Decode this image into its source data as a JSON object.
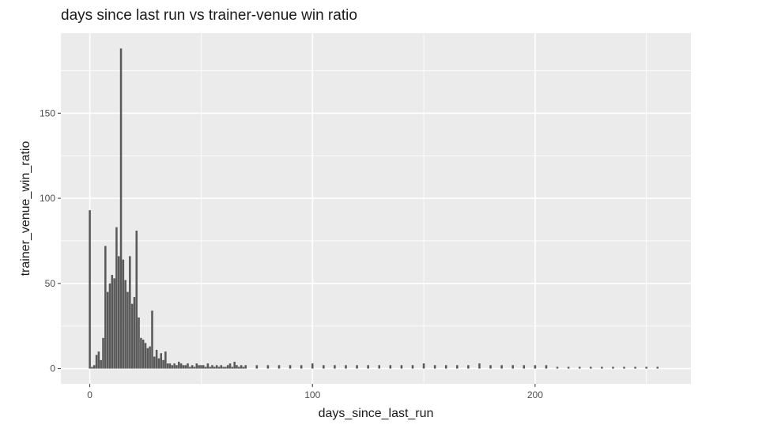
{
  "chart_data": {
    "type": "bar",
    "title": "days since last run vs trainer-venue win ratio",
    "xlabel": "days_since_last_run",
    "ylabel": "trainer_venue_win_ratio",
    "xlim": [
      -13,
      270
    ],
    "ylim": [
      -9,
      197
    ],
    "x_ticks": [
      0,
      100,
      200
    ],
    "y_ticks": [
      0,
      50,
      100,
      150
    ],
    "grid": true,
    "panel_color": "#ebebeb",
    "grid_color": "#ffffff",
    "bar_color": "#595959",
    "x": [
      0,
      1,
      2,
      3,
      4,
      5,
      6,
      7,
      8,
      9,
      10,
      11,
      12,
      13,
      14,
      15,
      16,
      17,
      18,
      19,
      20,
      21,
      22,
      23,
      24,
      25,
      26,
      27,
      28,
      29,
      30,
      31,
      32,
      33,
      34,
      35,
      36,
      37,
      38,
      39,
      40,
      41,
      42,
      43,
      44,
      45,
      46,
      47,
      48,
      49,
      50,
      51,
      52,
      53,
      54,
      55,
      56,
      57,
      58,
      59,
      60,
      61,
      62,
      63,
      64,
      65,
      66,
      67,
      68,
      69,
      70,
      75,
      80,
      85,
      90,
      95,
      100,
      105,
      110,
      115,
      120,
      125,
      130,
      135,
      140,
      145,
      150,
      155,
      160,
      165,
      170,
      175,
      180,
      185,
      190,
      195,
      200,
      205,
      210,
      215,
      220,
      225,
      230,
      235,
      240,
      245,
      250,
      255
    ],
    "values": [
      93,
      1,
      2,
      8,
      10,
      5,
      18,
      72,
      45,
      50,
      55,
      53,
      83,
      66,
      188,
      64,
      52,
      45,
      66,
      38,
      42,
      81,
      30,
      18,
      17,
      15,
      12,
      13,
      34,
      7,
      11,
      6,
      9,
      5,
      10,
      3,
      3,
      2,
      3,
      2,
      4,
      3,
      2,
      2,
      3,
      1,
      2,
      1,
      3,
      2,
      2,
      2,
      1,
      3,
      1,
      2,
      1,
      2,
      1,
      2,
      1,
      1,
      2,
      3,
      1,
      4,
      2,
      1,
      2,
      1,
      2,
      2,
      2,
      2,
      2,
      2,
      3,
      2,
      2,
      2,
      2,
      2,
      2,
      2,
      2,
      2,
      3,
      2,
      2,
      2,
      2,
      3,
      2,
      2,
      2,
      2,
      2,
      2,
      1,
      1,
      1,
      1,
      1,
      1,
      1,
      1,
      1,
      1
    ]
  }
}
